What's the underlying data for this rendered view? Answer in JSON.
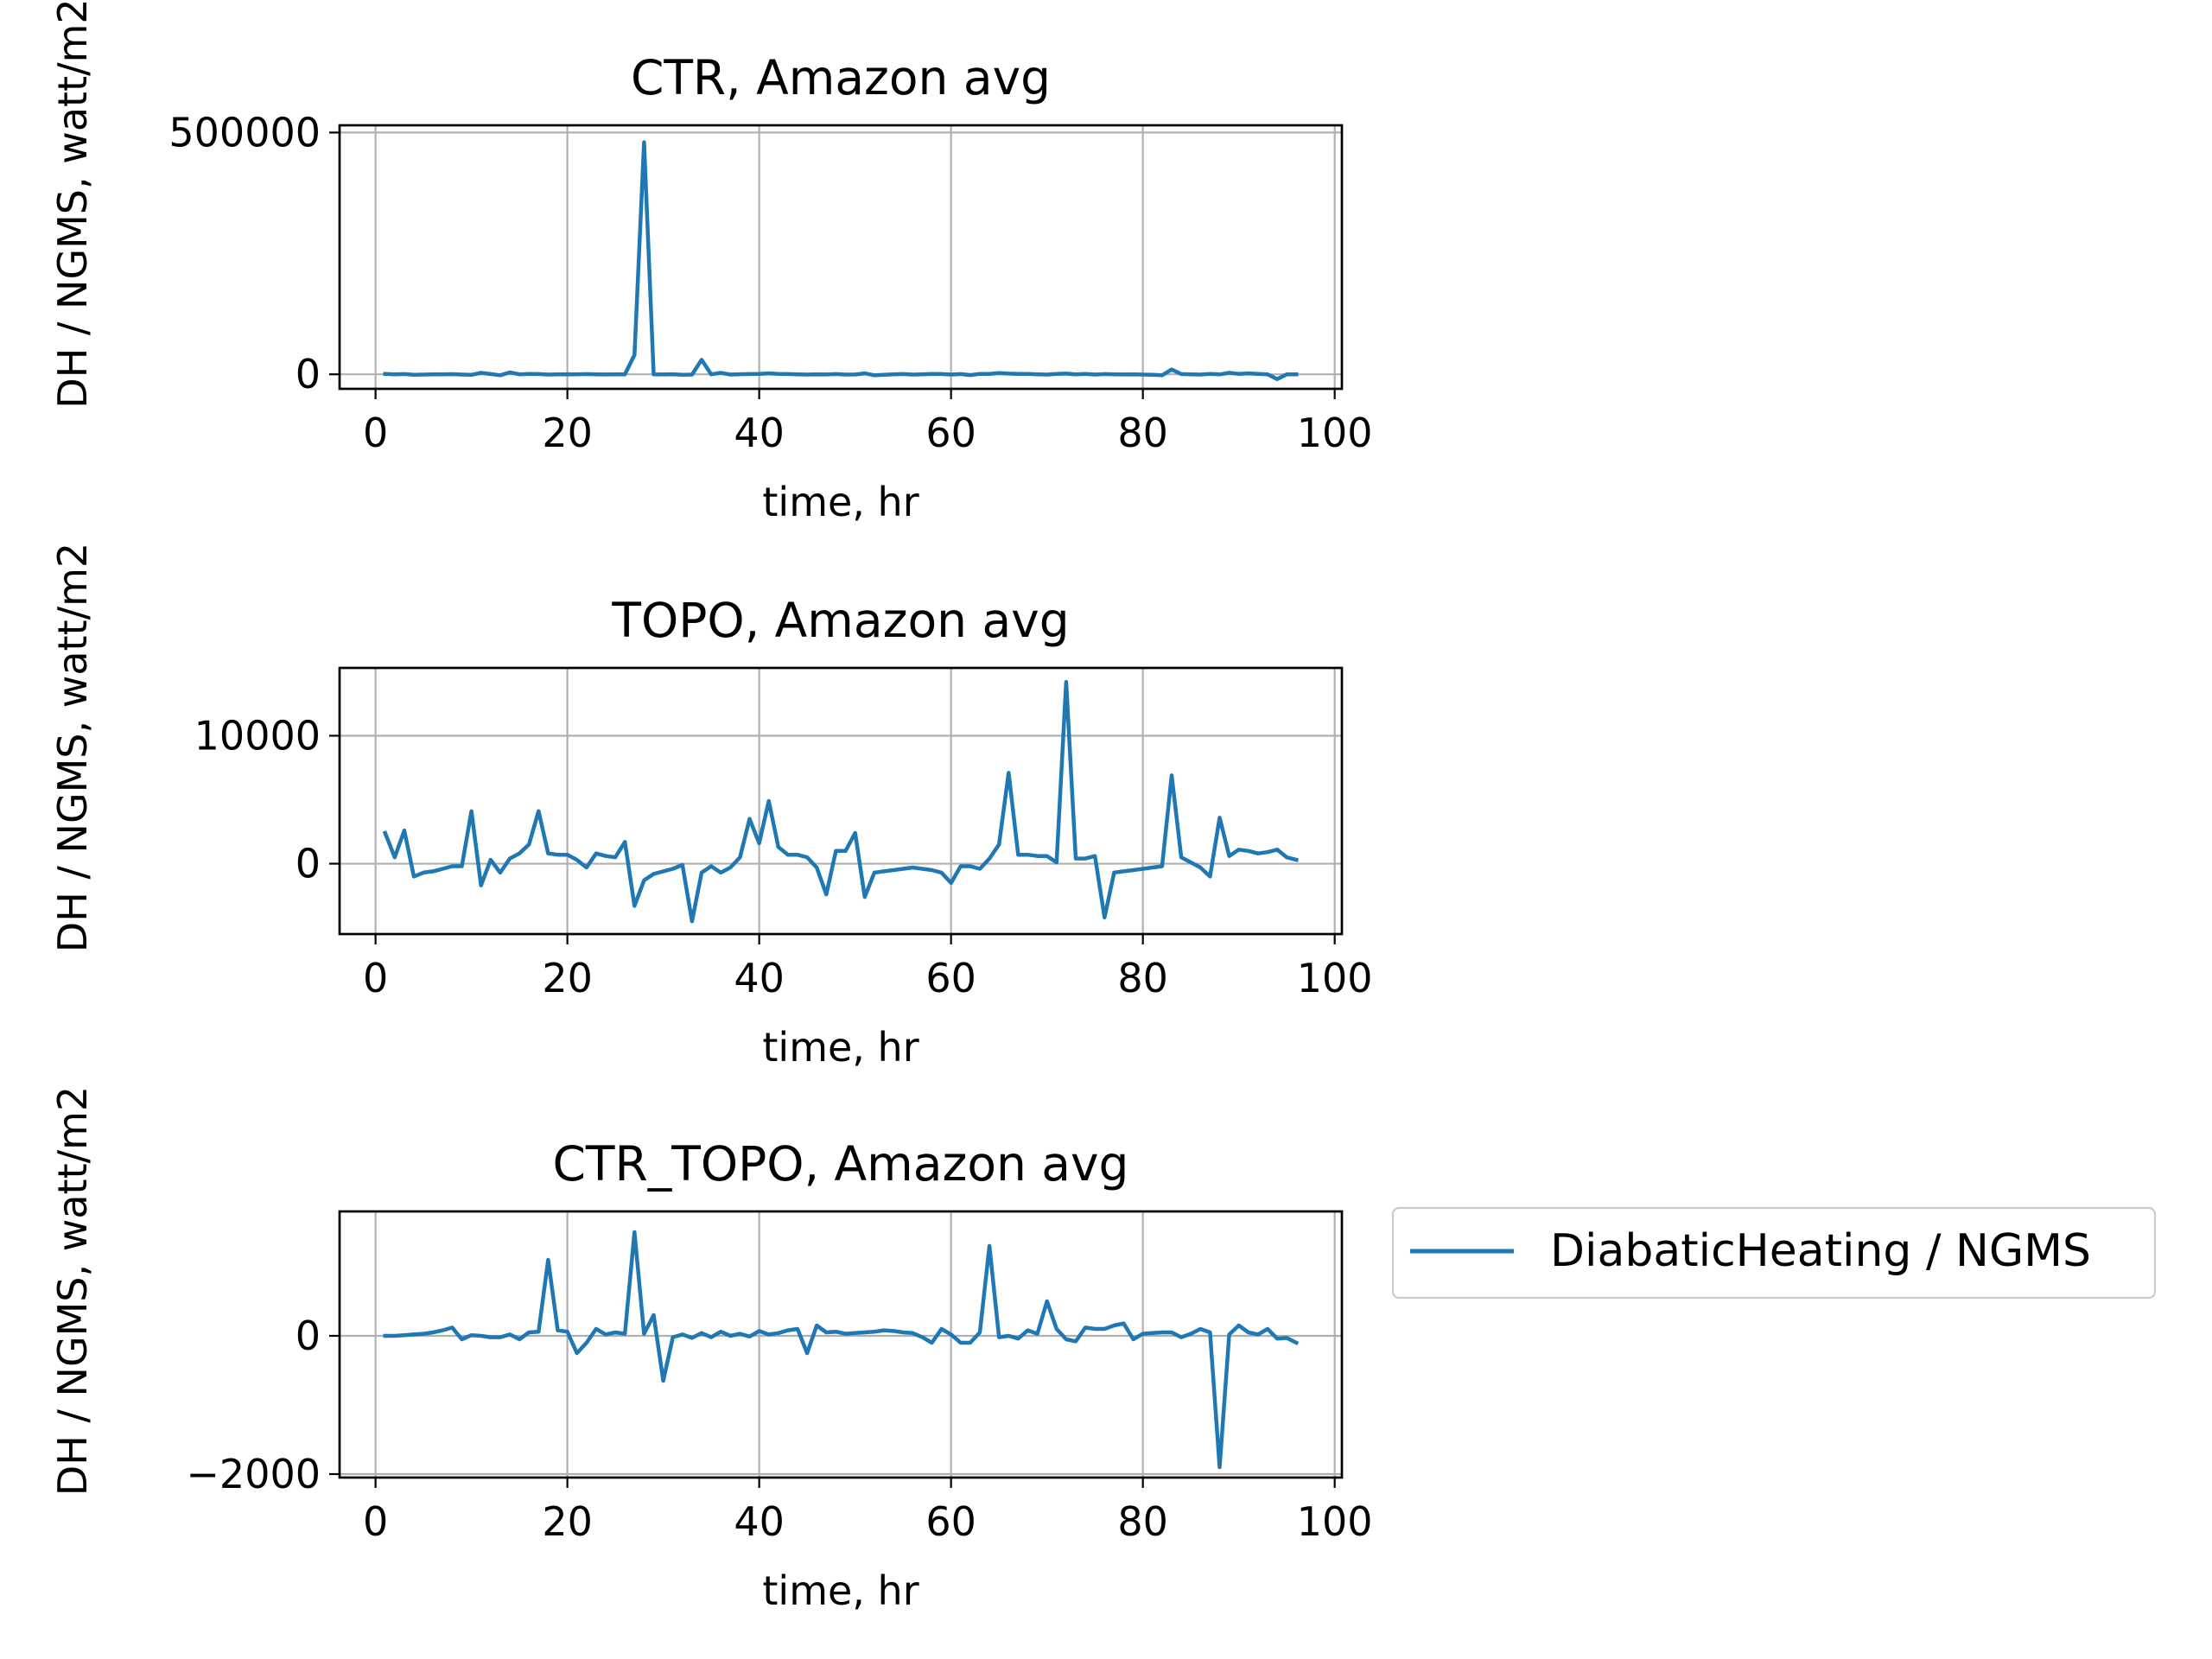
{
  "figure": {
    "legend": {
      "label": "DiabaticHeating / NGMS",
      "placement": "right of bottom panel"
    }
  },
  "colors": {
    "series": "#1f77b4",
    "grid": "#b0b0b0",
    "axis": "#000000",
    "background": "#ffffff"
  },
  "chart_data": [
    {
      "type": "line",
      "title": "CTR, Amazon avg",
      "xlabel": "time, hr",
      "ylabel": "DH / NGMS, watt/m2",
      "grid": true,
      "xlim": [
        -3.75,
        100.75
      ],
      "ylim": [
        -30000,
        515000
      ],
      "xticks": [
        0,
        20,
        40,
        60,
        80,
        100
      ],
      "xtick_labels": [
        "0",
        "20",
        "40",
        "60",
        "80",
        "100"
      ],
      "yticks": [
        0,
        500000
      ],
      "ytick_labels": [
        "0",
        "500000"
      ],
      "series": [
        {
          "name": "DiabaticHeating / NGMS",
          "x": [
            1,
            2,
            3,
            4,
            5,
            6,
            7,
            8,
            9,
            10,
            11,
            12,
            13,
            14,
            15,
            16,
            17,
            18,
            19,
            20,
            21,
            22,
            23,
            24,
            25,
            26,
            27,
            28,
            29,
            30,
            31,
            32,
            33,
            34,
            35,
            36,
            37,
            38,
            39,
            40,
            41,
            42,
            43,
            44,
            45,
            46,
            47,
            48,
            49,
            50,
            51,
            52,
            53,
            54,
            55,
            56,
            57,
            58,
            59,
            60,
            61,
            62,
            63,
            64,
            65,
            66,
            67,
            68,
            69,
            70,
            71,
            72,
            73,
            74,
            75,
            76,
            77,
            78,
            79,
            80,
            81,
            82,
            83,
            84,
            85,
            86,
            87,
            88,
            89,
            90,
            91,
            92,
            93,
            94,
            95,
            96
          ],
          "y": [
            1000,
            0,
            500,
            -1000,
            -500,
            -200,
            0,
            300,
            -500,
            -1000,
            3000,
            500,
            -2000,
            4000,
            0,
            1000,
            500,
            -500,
            0,
            200,
            -100,
            500,
            0,
            -300,
            100,
            0,
            40000,
            480000,
            0,
            -300,
            200,
            -1000,
            -500,
            30000,
            0,
            3000,
            -500,
            200,
            500,
            1000,
            2000,
            1000,
            500,
            -200,
            -500,
            0,
            -300,
            500,
            -500,
            -300,
            2000,
            -2000,
            -1000,
            0,
            500,
            -500,
            0,
            1000,
            500,
            -500,
            500,
            -1500,
            1000,
            1000,
            2500,
            1500,
            1000,
            800,
            0,
            -500,
            1000,
            1500,
            -200,
            1000,
            -500,
            500,
            0,
            -300,
            0,
            -500,
            -1000,
            -2000,
            10000,
            500,
            0,
            -500,
            1000,
            -200,
            3000,
            1000,
            2000,
            1000,
            0,
            -10000,
            0,
            0
          ]
        }
      ]
    },
    {
      "type": "line",
      "title": "TOPO, Amazon avg",
      "xlabel": "time, hr",
      "ylabel": "DH / NGMS, watt/m2",
      "grid": true,
      "xlim": [
        -3.75,
        100.75
      ],
      "ylim": [
        -5500,
        15300
      ],
      "xticks": [
        0,
        20,
        40,
        60,
        80,
        100
      ],
      "xtick_labels": [
        "0",
        "20",
        "40",
        "60",
        "80",
        "100"
      ],
      "yticks": [
        0,
        10000
      ],
      "ytick_labels": [
        "0",
        "10000"
      ],
      "series": [
        {
          "name": "DiabaticHeating / NGMS",
          "x": [
            1,
            2,
            3,
            4,
            5,
            6,
            7,
            8,
            9,
            10,
            11,
            12,
            13,
            14,
            15,
            16,
            17,
            18,
            19,
            20,
            21,
            22,
            23,
            24,
            25,
            26,
            27,
            28,
            29,
            30,
            31,
            32,
            33,
            34,
            35,
            36,
            37,
            38,
            39,
            40,
            41,
            42,
            43,
            44,
            45,
            46,
            47,
            48,
            49,
            50,
            51,
            52,
            53,
            54,
            55,
            56,
            57,
            58,
            59,
            60,
            61,
            62,
            63,
            64,
            65,
            66,
            67,
            68,
            69,
            70,
            71,
            72,
            73,
            74,
            75,
            76,
            77,
            78,
            79,
            80,
            81,
            82,
            83,
            84,
            85,
            86,
            87,
            88,
            89,
            90,
            91,
            92,
            93,
            94,
            95,
            96
          ],
          "y": [
            2400,
            500,
            2600,
            -1000,
            -700,
            -600,
            -400,
            -200,
            -200,
            4100,
            -1700,
            300,
            -700,
            400,
            800,
            1500,
            4100,
            800,
            700,
            700,
            300,
            -300,
            800,
            600,
            500,
            1700,
            -3300,
            -1300,
            -800,
            -600,
            -400,
            -100,
            -4500,
            -700,
            -200,
            -700,
            -300,
            500,
            3500,
            1600,
            4900,
            1300,
            700,
            700,
            500,
            -300,
            -2400,
            1000,
            1000,
            2400,
            -2600,
            -700,
            -600,
            -500,
            -400,
            -300,
            -400,
            -500,
            -700,
            -1500,
            -200,
            -200,
            -400,
            400,
            1500,
            7100,
            700,
            700,
            600,
            600,
            100,
            14200,
            400,
            400,
            600,
            -4200,
            -700,
            -600,
            -500,
            -400,
            -300,
            -200,
            6900,
            500,
            100,
            -300,
            -1000,
            3600,
            600,
            1100,
            1000,
            800,
            900,
            1100,
            500,
            300
          ]
        }
      ]
    },
    {
      "type": "line",
      "title": "CTR_TOPO, Amazon avg",
      "xlabel": "time, hr",
      "ylabel": "DH / NGMS, watt/m2",
      "grid": true,
      "xlim": [
        -3.75,
        100.75
      ],
      "ylim": [
        -2050,
        1800
      ],
      "xticks": [
        0,
        20,
        40,
        60,
        80,
        100
      ],
      "xtick_labels": [
        "0",
        "20",
        "40",
        "60",
        "80",
        "100"
      ],
      "yticks": [
        -2000,
        0
      ],
      "ytick_labels": [
        "−2000",
        "0"
      ],
      "series": [
        {
          "name": "DiabaticHeating / NGMS",
          "x": [
            1,
            2,
            3,
            4,
            5,
            6,
            7,
            8,
            9,
            10,
            11,
            12,
            13,
            14,
            15,
            16,
            17,
            18,
            19,
            20,
            21,
            22,
            23,
            24,
            25,
            26,
            27,
            28,
            29,
            30,
            31,
            32,
            33,
            34,
            35,
            36,
            37,
            38,
            39,
            40,
            41,
            42,
            43,
            44,
            45,
            46,
            47,
            48,
            49,
            50,
            51,
            52,
            53,
            54,
            55,
            56,
            57,
            58,
            59,
            60,
            61,
            62,
            63,
            64,
            65,
            66,
            67,
            68,
            69,
            70,
            71,
            72,
            73,
            74,
            75,
            76,
            77,
            78,
            79,
            80,
            81,
            82,
            83,
            84,
            85,
            86,
            87,
            88,
            89,
            90,
            91,
            92,
            93,
            94,
            95,
            96
          ],
          "y": [
            0,
            0,
            10,
            20,
            30,
            50,
            80,
            120,
            -50,
            10,
            0,
            -20,
            -20,
            20,
            -50,
            50,
            60,
            1100,
            80,
            60,
            -250,
            -100,
            100,
            20,
            50,
            30,
            1500,
            30,
            300,
            -650,
            -20,
            20,
            -30,
            40,
            -20,
            60,
            0,
            30,
            -10,
            70,
            20,
            40,
            80,
            100,
            -250,
            150,
            50,
            60,
            30,
            40,
            50,
            60,
            80,
            70,
            50,
            40,
            -20,
            -100,
            100,
            20,
            -100,
            -100,
            50,
            1300,
            -20,
            0,
            -40,
            80,
            30,
            500,
            100,
            -50,
            -80,
            120,
            100,
            100,
            150,
            180,
            -50,
            30,
            40,
            50,
            50,
            -20,
            30,
            100,
            50,
            -1900,
            20,
            150,
            50,
            20,
            100,
            -40,
            -30,
            -100
          ]
        }
      ]
    }
  ]
}
